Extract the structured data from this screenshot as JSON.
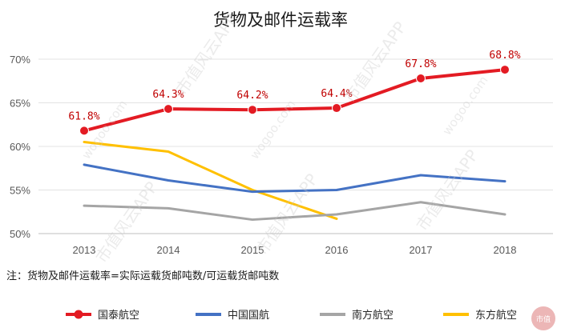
{
  "chart_data": {
    "type": "line",
    "title": "货物及邮件运载率",
    "categories": [
      "2013",
      "2014",
      "2015",
      "2016",
      "2017",
      "2018"
    ],
    "y_tick_labels": [
      "50%",
      "55%",
      "60%",
      "65%",
      "70%"
    ],
    "ylim": [
      50,
      70
    ],
    "grid": true,
    "legend_position": "bottom",
    "note": "注：货物及邮件运载率=实际运载货邮吨数/可运载货邮吨数",
    "series": [
      {
        "name": "国泰航空",
        "color": "#e31b23",
        "marker": "circle",
        "values": [
          61.8,
          64.3,
          64.2,
          64.4,
          67.8,
          68.8
        ],
        "labels": [
          "61.8%",
          "64.3%",
          "64.2%",
          "64.4%",
          "67.8%",
          "68.8%"
        ]
      },
      {
        "name": "中国国航",
        "color": "#4472c4",
        "values": [
          57.9,
          56.1,
          54.8,
          55.0,
          56.7,
          56.0
        ]
      },
      {
        "name": "南方航空",
        "color": "#a5a5a5",
        "values": [
          53.2,
          52.9,
          51.6,
          52.2,
          53.6,
          52.2
        ]
      },
      {
        "name": "东方航空",
        "color": "#ffc000",
        "values": [
          60.5,
          59.4,
          55.0,
          51.7,
          null,
          null
        ]
      }
    ]
  },
  "watermark": {
    "text": "市值风云APP",
    "site": "wogoo.com",
    "logo_text": "市值"
  }
}
